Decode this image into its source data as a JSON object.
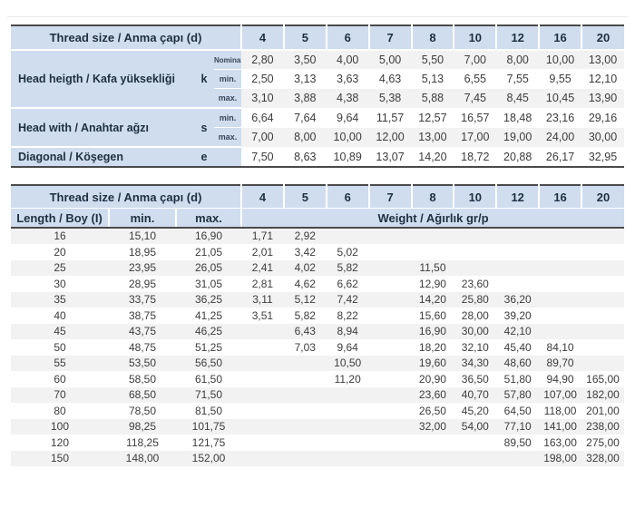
{
  "colors": {
    "header_bg": "#cfddef",
    "row_stripe": "#f2f2f2",
    "dark_border": "#4a4a4a",
    "header_text": "#1f2f42",
    "data_text": "#3c3c3c"
  },
  "dimensions_table": {
    "header": "Thread size / Anma çapı (d)",
    "diameters": [
      "4",
      "5",
      "6",
      "7",
      "8",
      "10",
      "12",
      "16",
      "20"
    ],
    "groups": [
      {
        "label": "Head heigth / Kafa yüksekliği",
        "symbol": "k",
        "rows": [
          {
            "sub": "Nominal",
            "values": [
              "2,80",
              "3,50",
              "4,00",
              "5,00",
              "5,50",
              "7,00",
              "8,00",
              "10,00",
              "13,00"
            ]
          },
          {
            "sub": "min.",
            "values": [
              "2,50",
              "3,13",
              "3,63",
              "4,63",
              "5,13",
              "6,55",
              "7,55",
              "9,55",
              "12,10"
            ]
          },
          {
            "sub": "max.",
            "values": [
              "3,10",
              "3,88",
              "4,38",
              "5,38",
              "5,88",
              "7,45",
              "8,45",
              "10,45",
              "13,90"
            ]
          }
        ]
      },
      {
        "label": "Head with / Anahtar ağzı",
        "symbol": "s",
        "rows": [
          {
            "sub": "min.",
            "values": [
              "6,64",
              "7,64",
              "9,64",
              "11,57",
              "12,57",
              "16,57",
              "18,48",
              "23,16",
              "29,16"
            ]
          },
          {
            "sub": "max.",
            "values": [
              "7,00",
              "8,00",
              "10,00",
              "12,00",
              "13,00",
              "17,00",
              "19,00",
              "24,00",
              "30,00"
            ]
          }
        ]
      },
      {
        "label": "Diagonal / Köşegen",
        "symbol": "e",
        "rows": [
          {
            "sub": "",
            "values": [
              "7,50",
              "8,63",
              "10,89",
              "13,07",
              "14,20",
              "18,72",
              "20,88",
              "26,17",
              "32,95"
            ]
          }
        ]
      }
    ]
  },
  "weights_table": {
    "header": "Thread size / Anma çapı (d)",
    "diameters": [
      "4",
      "5",
      "6",
      "7",
      "8",
      "10",
      "12",
      "16",
      "20"
    ],
    "length_header": "Length / Boy (I)",
    "min_header": "min.",
    "max_header": "max.",
    "weight_header": "Weight / Ağırlık gr/p",
    "rows": [
      {
        "length": "16",
        "min": "15,10",
        "max": "16,90",
        "weights": [
          "1,71",
          "2,92",
          "",
          "",
          "",
          "",
          "",
          "",
          ""
        ]
      },
      {
        "length": "20",
        "min": "18,95",
        "max": "21,05",
        "weights": [
          "2,01",
          "3,42",
          "5,02",
          "",
          "",
          "",
          "",
          "",
          ""
        ]
      },
      {
        "length": "25",
        "min": "23,95",
        "max": "26,05",
        "weights": [
          "2,41",
          "4,02",
          "5,82",
          "",
          "11,50",
          "",
          "",
          "",
          ""
        ]
      },
      {
        "length": "30",
        "min": "28,95",
        "max": "31,05",
        "weights": [
          "2,81",
          "4,62",
          "6,62",
          "",
          "12,90",
          "23,60",
          "",
          "",
          ""
        ]
      },
      {
        "length": "35",
        "min": "33,75",
        "max": "36,25",
        "weights": [
          "3,11",
          "5,12",
          "7,42",
          "",
          "14,20",
          "25,80",
          "36,20",
          "",
          ""
        ]
      },
      {
        "length": "40",
        "min": "38,75",
        "max": "41,25",
        "weights": [
          "3,51",
          "5,82",
          "8,22",
          "",
          "15,60",
          "28,00",
          "39,20",
          "",
          ""
        ]
      },
      {
        "length": "45",
        "min": "43,75",
        "max": "46,25",
        "weights": [
          "",
          "6,43",
          "8,94",
          "",
          "16,90",
          "30,00",
          "42,10",
          "",
          ""
        ]
      },
      {
        "length": "50",
        "min": "48,75",
        "max": "51,25",
        "weights": [
          "",
          "7,03",
          "9,64",
          "",
          "18,20",
          "32,10",
          "45,40",
          "84,10",
          ""
        ]
      },
      {
        "length": "55",
        "min": "53,50",
        "max": "56,50",
        "weights": [
          "",
          "",
          "10,50",
          "",
          "19,60",
          "34,30",
          "48,60",
          "89,70",
          ""
        ]
      },
      {
        "length": "60",
        "min": "58,50",
        "max": "61,50",
        "weights": [
          "",
          "",
          "11,20",
          "",
          "20,90",
          "36,50",
          "51,80",
          "94,90",
          "165,00"
        ]
      },
      {
        "length": "70",
        "min": "68,50",
        "max": "71,50",
        "weights": [
          "",
          "",
          "",
          "",
          "23,60",
          "40,70",
          "57,80",
          "107,00",
          "182,00"
        ]
      },
      {
        "length": "80",
        "min": "78,50",
        "max": "81,50",
        "weights": [
          "",
          "",
          "",
          "",
          "26,50",
          "45,20",
          "64,50",
          "118,00",
          "201,00"
        ]
      },
      {
        "length": "100",
        "min": "98,25",
        "max": "101,75",
        "weights": [
          "",
          "",
          "",
          "",
          "32,00",
          "54,00",
          "77,10",
          "141,00",
          "238,00"
        ]
      },
      {
        "length": "120",
        "min": "118,25",
        "max": "121,75",
        "weights": [
          "",
          "",
          "",
          "",
          "",
          "",
          "89,50",
          "163,00",
          "275,00"
        ]
      },
      {
        "length": "150",
        "min": "148,00",
        "max": "152,00",
        "weights": [
          "",
          "",
          "",
          "",
          "",
          "",
          "",
          "198,00",
          "328,00"
        ]
      }
    ]
  }
}
